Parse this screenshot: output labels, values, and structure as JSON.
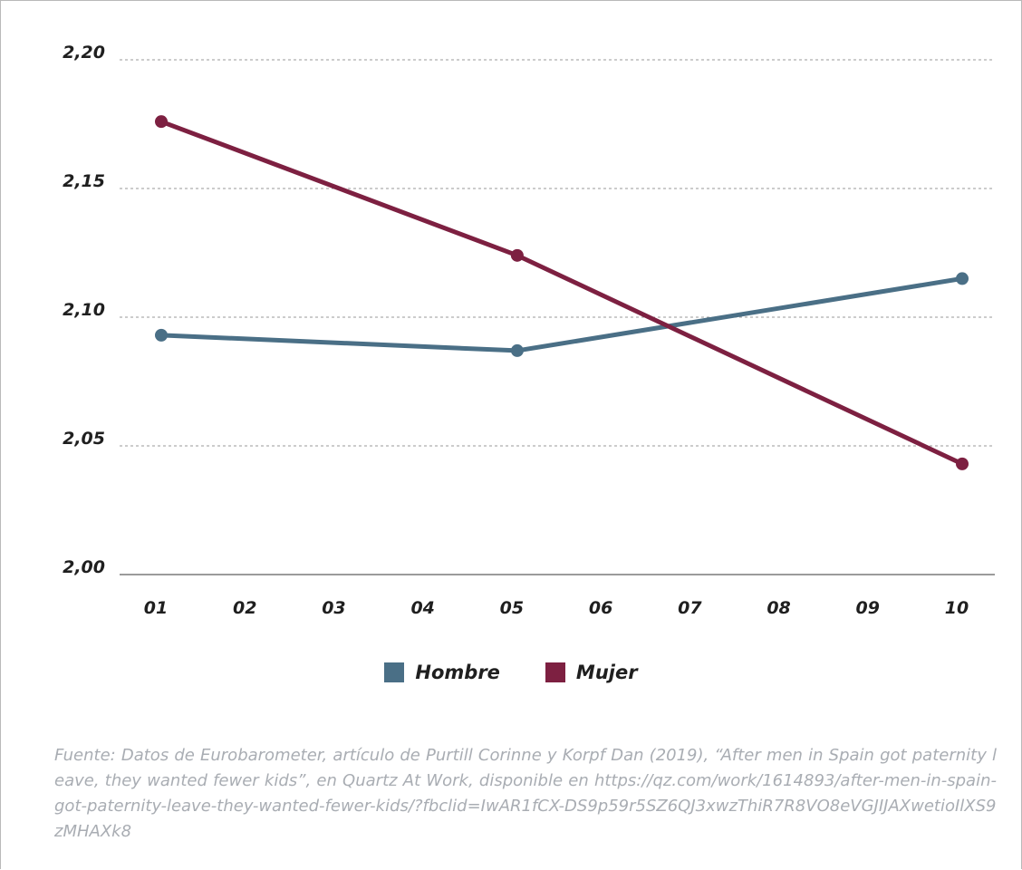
{
  "chart_data": {
    "type": "line",
    "categories": [
      "01",
      "02",
      "03",
      "04",
      "05",
      "06",
      "07",
      "08",
      "09",
      "10"
    ],
    "ylim": [
      2.0,
      2.2
    ],
    "yticks": [
      "2,00",
      "2,05",
      "2,10",
      "2,15",
      "2,20"
    ],
    "grid": true,
    "legend_position": "bottom-center",
    "series": [
      {
        "name": "Hombre",
        "color": "#4a6f86",
        "points": [
          {
            "x": "01",
            "y": 2.093
          },
          {
            "x": "05",
            "y": 2.087
          },
          {
            "x": "10",
            "y": 2.115
          }
        ]
      },
      {
        "name": "Mujer",
        "color": "#7d2041",
        "points": [
          {
            "x": "01",
            "y": 2.176
          },
          {
            "x": "05",
            "y": 2.124
          },
          {
            "x": "10",
            "y": 2.043
          }
        ]
      }
    ]
  },
  "source": "Fuente: Datos de Eurobarometer, artículo de Purtill Corinne y Korpf Dan (2019), “After men in Spain got paternity leave, they wanted fewer kids”, en Quartz At Work, disponible en https://qz.com/work/1614893/after-men-in-spain-got-paternity-leave-they-wanted-fewer-kids/?fbclid=IwAR1fCX-DS9p59r5SZ6QJ3xwzThiR7R8VO8eVGJIJAXwetioIlXS9zMHAXk8"
}
